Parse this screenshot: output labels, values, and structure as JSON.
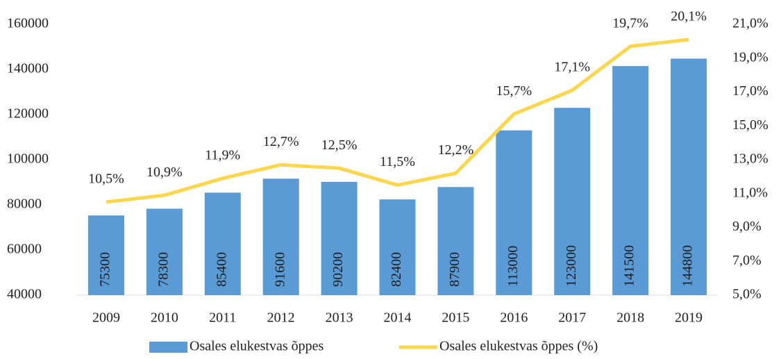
{
  "chart_data": {
    "type": "bar",
    "categories": [
      "2009",
      "2010",
      "2011",
      "2012",
      "2013",
      "2014",
      "2015",
      "2016",
      "2017",
      "2018",
      "2019"
    ],
    "series": [
      {
        "name": "Osales elukestvas õppes",
        "type": "bar",
        "color": "#5b9bd5",
        "values": [
          75300,
          78300,
          85400,
          91600,
          90200,
          82400,
          87900,
          113000,
          123000,
          141500,
          144800
        ]
      },
      {
        "name": "Osales elukestvas õppes (%)",
        "type": "line",
        "axis": "y2",
        "color": "#fdd64b",
        "values": [
          10.5,
          10.9,
          11.9,
          12.7,
          12.5,
          11.5,
          12.2,
          15.7,
          17.1,
          19.7,
          20.1
        ],
        "value_labels": [
          "10,5%",
          "10,9%",
          "11,9%",
          "12,7%",
          "12,5%",
          "11,5%",
          "12,2%",
          "15,7%",
          "17,1%",
          "19,7%",
          "20,1%"
        ]
      }
    ],
    "ylim": [
      40000,
      160000
    ],
    "yticks": [
      40000,
      60000,
      80000,
      100000,
      120000,
      140000,
      160000
    ],
    "y2lim": [
      5,
      21
    ],
    "y2ticks": [
      {
        "value": 5,
        "label": "5,0%"
      },
      {
        "value": 7,
        "label": "7,0%"
      },
      {
        "value": 9,
        "label": "9,0%"
      },
      {
        "value": 11,
        "label": "11,0%"
      },
      {
        "value": 13,
        "label": "13,0%"
      },
      {
        "value": 15,
        "label": "15,0%"
      },
      {
        "value": 17,
        "label": "17,0%"
      },
      {
        "value": 19,
        "label": "19,0%"
      },
      {
        "value": 21,
        "label": "21,0%"
      }
    ],
    "grid": false,
    "legend": "bottom"
  }
}
